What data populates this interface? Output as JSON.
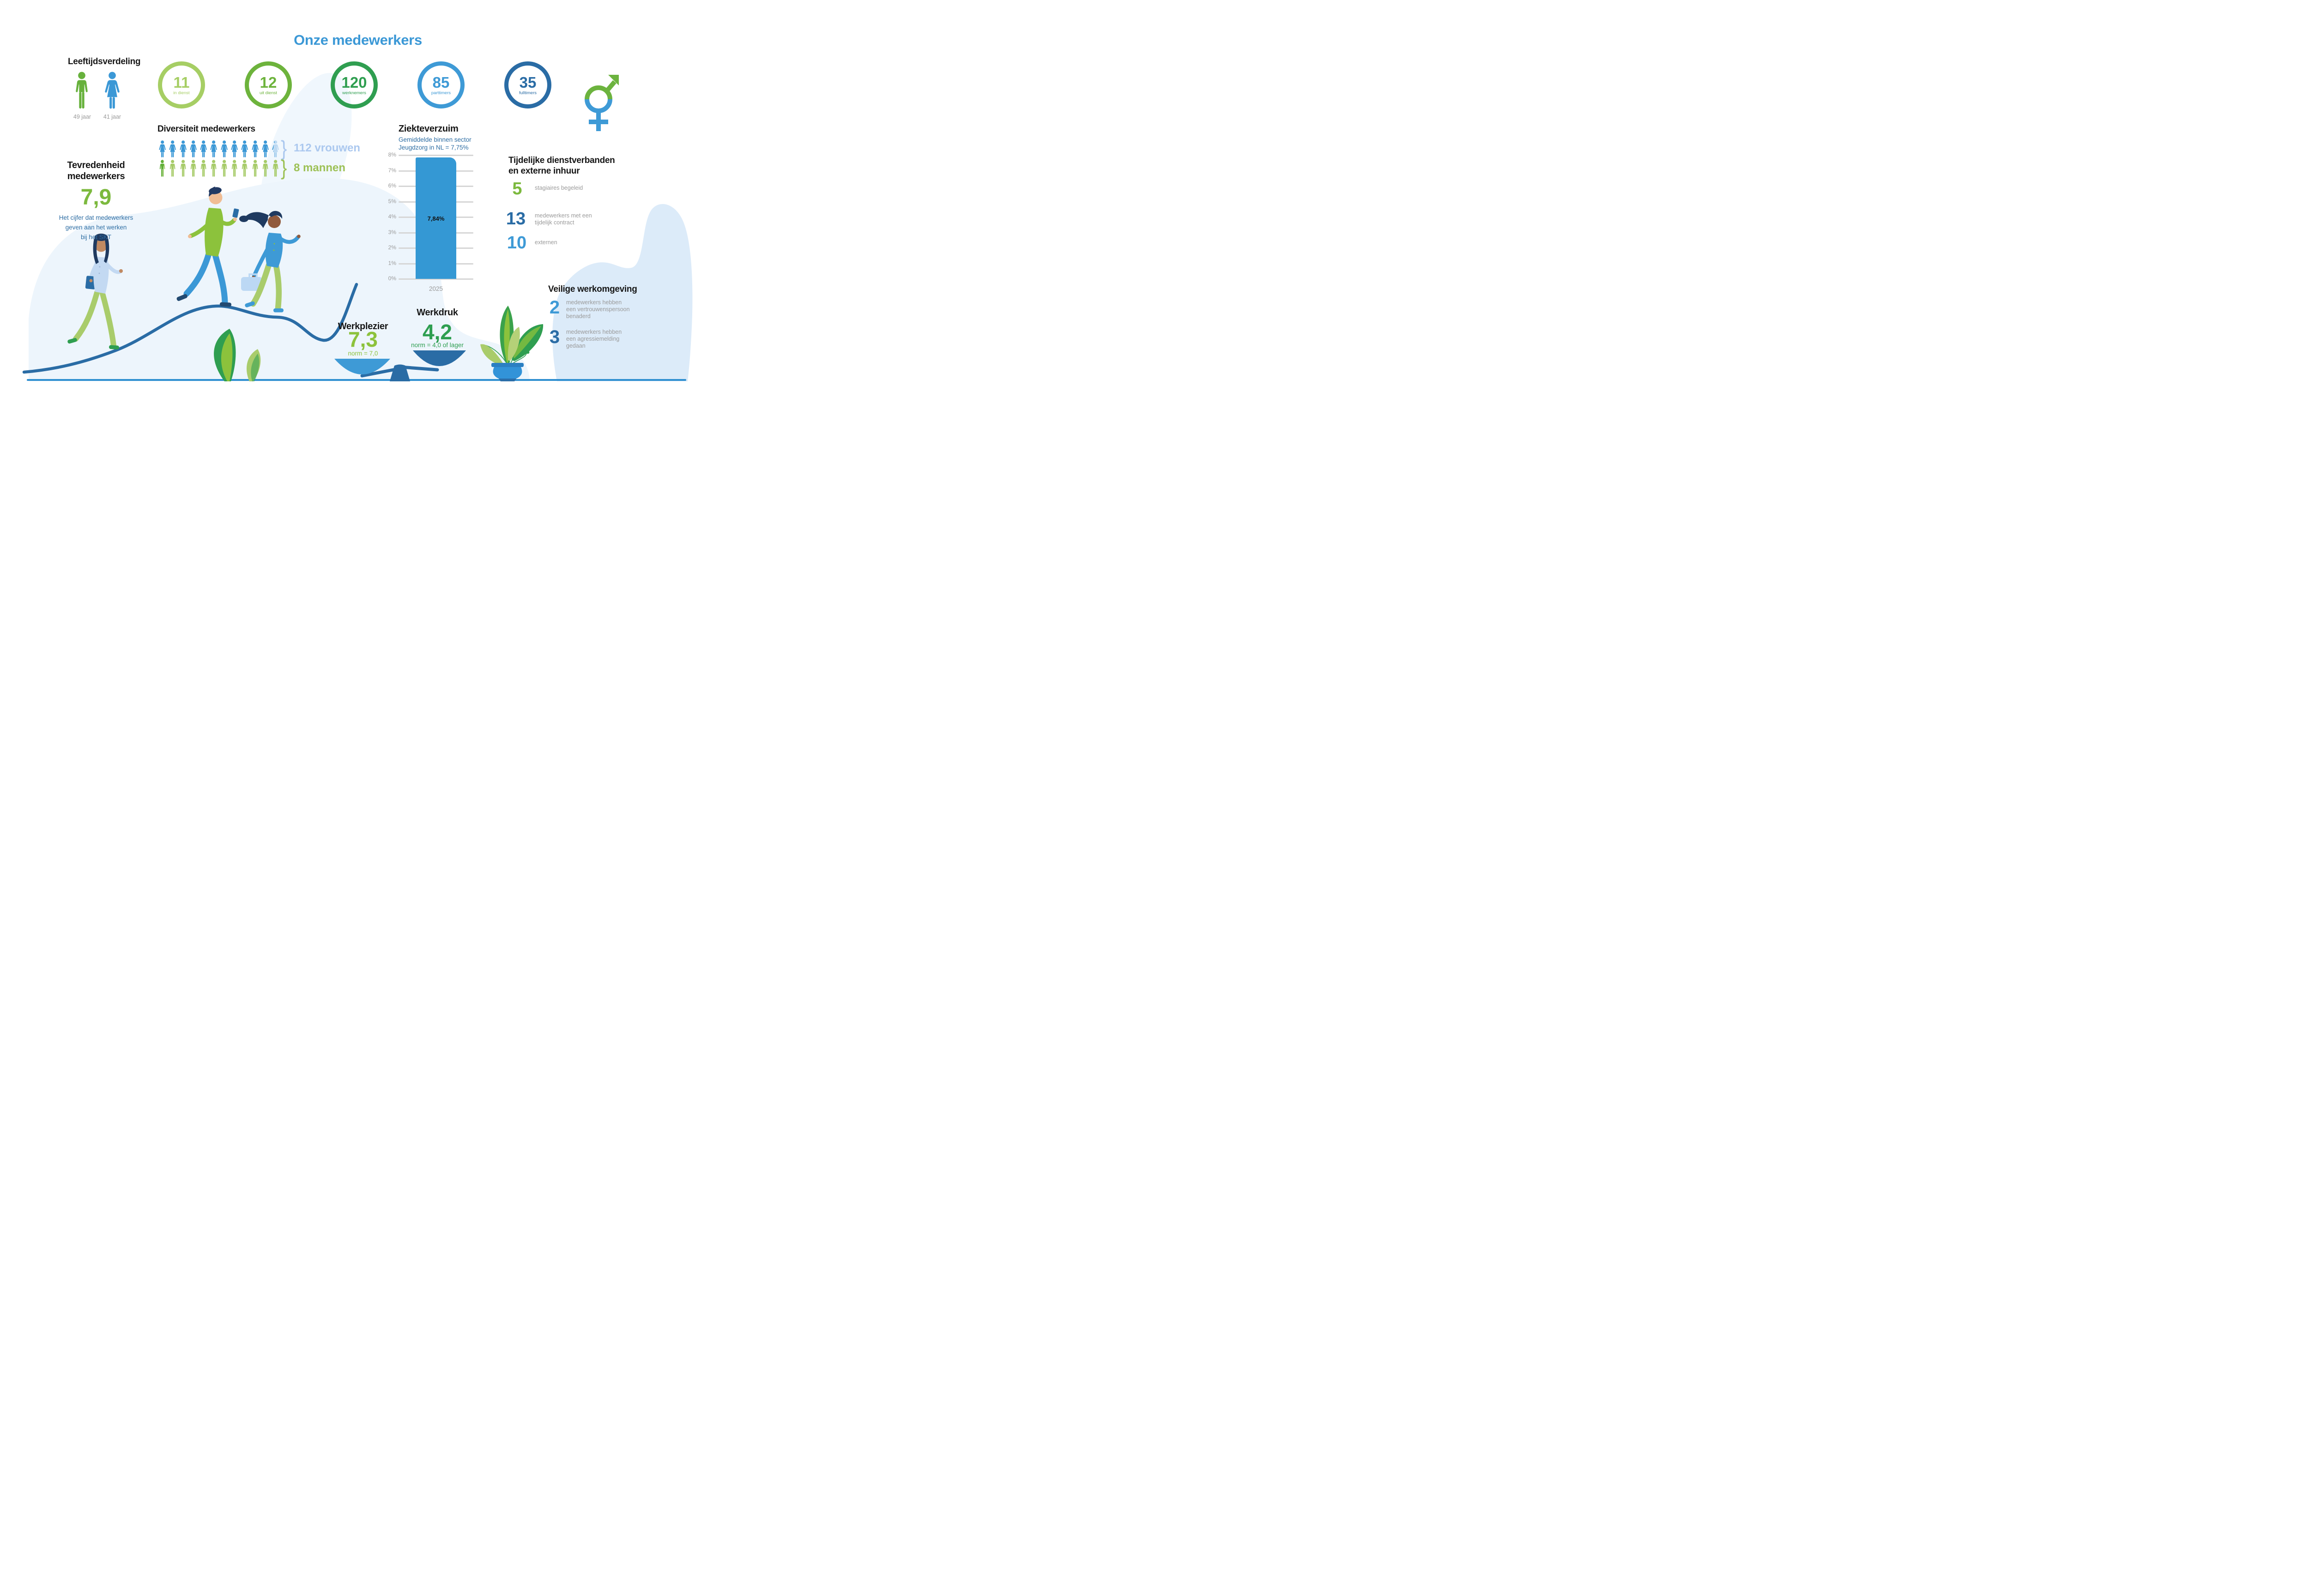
{
  "page_title": "Onze medewerkers",
  "palette": {
    "title_blue": "#3b98d6",
    "text_blue": "#2d6da3",
    "gray": "#9a9a9a",
    "green_light": "#a6ce64",
    "green_mid": "#6db33c",
    "green_dark": "#2f9e50",
    "blue_mid": "#3e9ad6",
    "blue_dark": "#2a6ca5",
    "bar_blue": "#3498d4",
    "vrouwen_text": "#abc8ef",
    "mannen_text": "#9dc156"
  },
  "leeftijdsverdeling": {
    "heading": "Leeftijdsverdeling",
    "male_age_label": "49 jaar",
    "female_age_label": "41 jaar"
  },
  "stats": [
    {
      "value": "11",
      "label": "in dienst",
      "color": "#a6ce64"
    },
    {
      "value": "12",
      "label": "uit dienst",
      "color": "#6db33c"
    },
    {
      "value": "120",
      "label": "werknemers",
      "color": "#2f9e50"
    },
    {
      "value": "85",
      "label": "parttimers",
      "color": "#3e9ad6"
    },
    {
      "value": "35",
      "label": "fulltimers",
      "color": "#2a6ca5"
    }
  ],
  "diversiteit": {
    "heading": "Diversiteit medewerkers",
    "vrouwen": 112,
    "vrouwen_label": "112 vrouwen",
    "mannen": 8,
    "mannen_label": "8 mannen",
    "icons_per_row": 12,
    "brace": "}"
  },
  "tevredenheid": {
    "heading_line1": "Tevredenheid",
    "heading_line2": "medewerkers",
    "score": "7,9",
    "desc_line1": "Het cijfer dat medewerkers",
    "desc_line2": "geven aan het werken",
    "desc_line3": "bij het SKT"
  },
  "ziekteverzuim": {
    "heading": "Ziekteverzuim",
    "subtitle_line1": "Gemiddelde binnen sector",
    "subtitle_line2": "Jeugdzorg in NL = 7,75%"
  },
  "chart_data": {
    "type": "bar",
    "title": "Ziekteverzuim",
    "subtitle": "Gemiddelde binnen sector Jeugdzorg in NL = 7,75%",
    "categories": [
      "2025"
    ],
    "values": [
      7.84
    ],
    "bar_labels": [
      "7,84%"
    ],
    "sector_average_nl": 7.75,
    "ylim": [
      0,
      8
    ],
    "yticks": [
      "8%",
      "7%",
      "6%",
      "5%",
      "4%",
      "3%",
      "2%",
      "1%",
      "0%"
    ],
    "grid": true,
    "bar_color": "#3498d4",
    "xlabel": "",
    "ylabel": ""
  },
  "tijdelijk": {
    "heading_line1": "Tijdelijke dienstverbanden",
    "heading_line2": "en externe inhuur",
    "items": [
      {
        "value": "5",
        "label": "stagiaires begeleid",
        "color": "#7cb93e"
      },
      {
        "value": "13",
        "label_line1": "medewerkers met een",
        "label_line2": "tijdelijk contract",
        "color": "#2a6ca5"
      },
      {
        "value": "10",
        "label": "externen",
        "color": "#3e9ad6"
      }
    ]
  },
  "veilig": {
    "heading": "Veilige werkomgeving",
    "items": [
      {
        "value": "2",
        "color": "#3e9ad6",
        "line1": "medewerkers hebben",
        "line2": "een vertrouwenspersoon",
        "line3": "benaderd"
      },
      {
        "value": "3",
        "color": "#2a6ca5",
        "line1": "medewerkers hebben",
        "line2": "een agressiemelding",
        "line3": "gedaan"
      }
    ]
  },
  "werkplezier": {
    "heading": "Werkplezier",
    "score": "7,3",
    "norm": "norm = 7,0"
  },
  "werkdruk": {
    "heading": "Werkdruk",
    "score": "4,2",
    "norm": "norm = 4,0 of lager"
  }
}
